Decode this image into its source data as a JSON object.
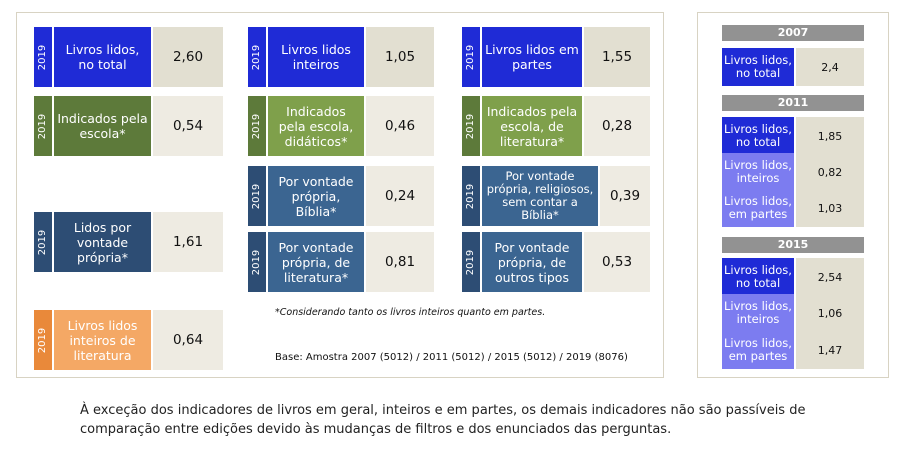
{
  "colors": {
    "blue": "#1f2bd6",
    "olive": "#5d7a3a",
    "olive_light": "#7fa04b",
    "navy": "#2d4d74",
    "steel": "#3b6591",
    "orange": "#e9893a",
    "orange_light": "#f4a865",
    "beige": "#e2dfd1",
    "beige_light": "#eeebe2",
    "lavender": "#7c7cf0",
    "header_gray": "#929292"
  },
  "left": {
    "year": "2019",
    "cards": [
      {
        "label": "Livros lidos, no total",
        "value": "2,60"
      },
      {
        "label": "Livros lidos inteiros",
        "value": "1,05"
      },
      {
        "label": "Livros lidos em partes",
        "value": "1,55"
      },
      {
        "label": "Indicados pela escola*",
        "value": "0,54"
      },
      {
        "label": "Indicados pela escola, didáticos*",
        "value": "0,46"
      },
      {
        "label": "Indicados pela escola, de literatura*",
        "value": "0,28"
      },
      {
        "label": "Por vontade própria, Bíblia*",
        "value": "0,24"
      },
      {
        "label": "Por vontade própria, religiosos, sem contar a Bíblia*",
        "value": "0,39"
      },
      {
        "label": "Lidos por vontade própria*",
        "value": "1,61"
      },
      {
        "label": "Por vontade própria, de literatura*",
        "value": "0,81"
      },
      {
        "label": "Por vontade própria, de outros tipos",
        "value": "0,53"
      },
      {
        "label": "Livros lidos inteiros de literatura",
        "value": "0,64"
      }
    ],
    "footnote": "*Considerando tanto os livros inteiros quanto em partes.",
    "base": "Base: Amostra 2007 (5012) / 2011 (5012) / 2015 (5012) / 2019 (8076)"
  },
  "right": {
    "groups": [
      {
        "year": "2007",
        "rows": [
          {
            "label": "Livros lidos, no total",
            "value": "2,4"
          }
        ]
      },
      {
        "year": "2011",
        "rows": [
          {
            "label": "Livros lidos, no total",
            "value": "1,85"
          },
          {
            "label": "Livros lidos, inteiros",
            "value": "0,82"
          },
          {
            "label": "Livros lidos, em partes",
            "value": "1,03"
          }
        ]
      },
      {
        "year": "2015",
        "rows": [
          {
            "label": "Livros lidos, no total",
            "value": "2,54"
          },
          {
            "label": "Livros lidos, inteiros",
            "value": "1,06"
          },
          {
            "label": "Livros lidos, em partes",
            "value": "1,47"
          }
        ]
      }
    ]
  },
  "caption": "À exceção dos indicadores de livros em geral, inteiros e em partes, os demais indicadores não são passíveis de comparação entre edições devido às mudanças de filtros e dos enunciados das perguntas."
}
